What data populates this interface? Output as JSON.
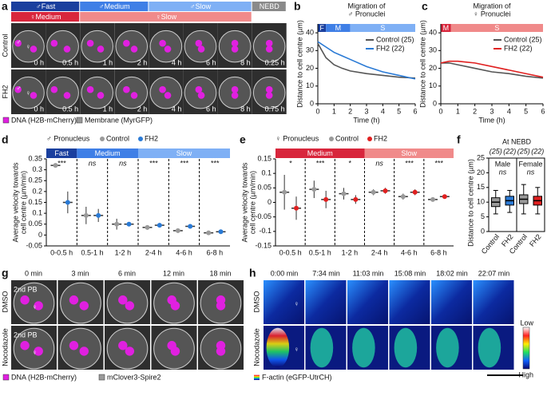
{
  "panel_labels": [
    "a",
    "b",
    "c",
    "d",
    "e",
    "f",
    "g",
    "h"
  ],
  "panel_a": {
    "male_phases": [
      "♂Fast",
      "♂Medium",
      "♂Slow",
      "NEBD"
    ],
    "female_phases": [
      "♀Medium",
      "♀Slow"
    ],
    "rows": [
      "Control",
      "FH2"
    ],
    "times": [
      [
        "0 h",
        "0.5 h",
        "1 h",
        "2 h",
        "4 h",
        "6 h",
        "8 h",
        "0.25 h"
      ],
      [
        "0 h",
        "0.5 h",
        "1 h",
        "2 h",
        "4 h",
        "6 h",
        "8 h",
        "0.75 h"
      ]
    ],
    "markers": [
      "♂",
      "♀"
    ],
    "legend": [
      "DNA (H2B-mCherry)",
      "Membrane (MyrGFP)"
    ]
  },
  "panel_g": {
    "times": [
      "0 min",
      "3 min",
      "6 min",
      "12 min",
      "18 min"
    ],
    "rows": [
      "DMSO",
      "Nocodazole"
    ],
    "polar_body": "2nd PB",
    "female": "♀",
    "legend": [
      "DNA (H2B-mCherry)",
      "mClover3-Spire2"
    ]
  },
  "panel_h": {
    "times": [
      "0:00 min",
      "7:34 min",
      "11:03 min",
      "15:08 min",
      "18:02 min",
      "22:07 min"
    ],
    "rows": [
      "DMSO",
      "Nocodazole"
    ],
    "female": "♀",
    "colorbar": [
      "Low",
      "High"
    ],
    "legend": [
      "F-actin (eGFP-UtrCH)"
    ]
  },
  "chart_data": [
    {
      "type": "line",
      "title": [
        "Migration of",
        "♂ Pronuclei"
      ],
      "xlabel": "Time (h)",
      "ylabel": "Distance to cell centre (µm)",
      "x": [
        0,
        0.5,
        1,
        1.5,
        2,
        3,
        4,
        5,
        6
      ],
      "xlim": [
        0,
        6
      ],
      "xticks": [
        0,
        1,
        2,
        3,
        4,
        5,
        6
      ],
      "ylim": [
        0,
        45
      ],
      "yticks": [
        0,
        10,
        20,
        30,
        40
      ],
      "phases": [
        {
          "label": "F",
          "from": 0,
          "to": 0.5,
          "color": "#1a3f9e"
        },
        {
          "label": "M",
          "from": 0.5,
          "to": 2,
          "color": "#3f7fe6"
        },
        {
          "label": "S",
          "from": 2,
          "to": 6,
          "color": "#7fb0f5"
        }
      ],
      "legend": "upper right",
      "series": [
        {
          "name": "Control (25)",
          "color": "#555555",
          "values": [
            34,
            26,
            22,
            20,
            18.5,
            17,
            16,
            15,
            14.5
          ]
        },
        {
          "name": "FH2 (22)",
          "color": "#2a7ad5",
          "values": [
            35,
            32,
            29,
            27,
            25,
            21,
            18,
            16,
            14
          ]
        }
      ]
    },
    {
      "type": "line",
      "title": [
        "Migration of",
        "♀ Pronuclei"
      ],
      "xlabel": "Time (h)",
      "ylabel": "Distance to cell centre (µm)",
      "x": [
        0,
        0.5,
        1,
        1.5,
        2,
        3,
        4,
        5,
        6
      ],
      "xlim": [
        0,
        6
      ],
      "xticks": [
        0,
        1,
        2,
        3,
        4,
        5,
        6
      ],
      "ylim": [
        0,
        45
      ],
      "yticks": [
        0,
        10,
        20,
        30,
        40
      ],
      "phases": [
        {
          "label": "M",
          "from": 0,
          "to": 0.6,
          "color": "#d8263c"
        },
        {
          "label": "S",
          "from": 0.6,
          "to": 6,
          "color": "#f08a8a"
        }
      ],
      "legend": "upper right",
      "series": [
        {
          "name": "Control (25)",
          "color": "#555555",
          "values": [
            23,
            23,
            22,
            21,
            20,
            18,
            17,
            15.5,
            14.5
          ]
        },
        {
          "name": "FH2 (22)",
          "color": "#e02020",
          "values": [
            23,
            24,
            24,
            23.5,
            23,
            21,
            19,
            17,
            15
          ]
        }
      ]
    },
    {
      "type": "strip",
      "legend_title": "♂ Pronucleus",
      "ylabel": [
        "Average velocity towards",
        "cell centre (µm/min)"
      ],
      "categories": [
        "0-0.5 h",
        "0.5-1 h",
        "1-2 h",
        "2-4 h",
        "4-6 h",
        "6-8 h"
      ],
      "ylim": [
        -0.05,
        0.35
      ],
      "yticks": [
        -0.05,
        0,
        0.05,
        0.1,
        0.15,
        0.2,
        0.25,
        0.3,
        0.35
      ],
      "phases": [
        {
          "label": "Fast",
          "span": 1,
          "color": "#1a3f9e"
        },
        {
          "label": "Medium",
          "span": 2,
          "color": "#3f7fe6"
        },
        {
          "label": "Slow",
          "span": 3,
          "color": "#7fb0f5"
        }
      ],
      "significance": [
        "***",
        "ns",
        "ns",
        "***",
        "***",
        "***"
      ],
      "series": [
        {
          "name": "Control",
          "color": "#9a9a9a",
          "values": [
            0.32,
            0.09,
            0.05,
            0.035,
            0.02,
            0.01
          ],
          "errors": [
            0.01,
            0.04,
            0.025,
            0.01,
            0.01,
            0.005
          ]
        },
        {
          "name": "FH2",
          "color": "#2a7ad5",
          "values": [
            0.15,
            0.09,
            0.05,
            0.045,
            0.04,
            0.015
          ],
          "errors": [
            0.05,
            0.03,
            0.01,
            0.01,
            0.008,
            0.005
          ]
        }
      ]
    },
    {
      "type": "strip",
      "legend_title": "♀ Pronucleus",
      "ylabel": [
        "Average velocity towards",
        "cell centre (µm/min)"
      ],
      "categories": [
        "0-0.5 h",
        "0.5-1 h",
        "1-2 h",
        "2-4 h",
        "4-6 h",
        "6-8 h"
      ],
      "ylim": [
        -0.15,
        0.15
      ],
      "yticks": [
        -0.15,
        -0.1,
        -0.05,
        0,
        0.05,
        0.1,
        0.15
      ],
      "phases": [
        {
          "label": "Medium",
          "span": 3,
          "color": "#d8263c"
        },
        {
          "label": "Slow",
          "span": 3,
          "color": "#f08a8a"
        }
      ],
      "significance": [
        "*",
        "***",
        "*",
        "ns",
        "***",
        "***"
      ],
      "series": [
        {
          "name": "Control",
          "color": "#9a9a9a",
          "values": [
            0.035,
            0.045,
            0.03,
            0.035,
            0.02,
            0.01
          ],
          "errors": [
            0.06,
            0.03,
            0.02,
            0.01,
            0.01,
            0.005
          ]
        },
        {
          "name": "FH2",
          "color": "#e02020",
          "values": [
            -0.02,
            0.01,
            0.01,
            0.04,
            0.035,
            0.02
          ],
          "errors": [
            0.04,
            0.03,
            0.015,
            0.01,
            0.01,
            0.005
          ]
        }
      ]
    },
    {
      "type": "box",
      "title": "At NEBD",
      "ylabel": "Distance to  cell centre (µm)",
      "categories": [
        "Control",
        "FH2",
        "Control",
        "FH2"
      ],
      "counts": [
        "(25)",
        "(22)",
        "(25)",
        "(22)"
      ],
      "groups": [
        {
          "name": "Male",
          "annotation": "ns"
        },
        {
          "name": "Female",
          "annotation": "ns"
        }
      ],
      "ylim": [
        0,
        25
      ],
      "yticks": [
        0,
        5,
        10,
        15,
        20,
        25
      ],
      "boxes": [
        {
          "color": "#9a9a9a",
          "min": 6,
          "q1": 8.5,
          "median": 10,
          "q3": 11.5,
          "max": 14
        },
        {
          "color": "#2a7ad5",
          "min": 6.5,
          "q1": 9,
          "median": 10.5,
          "q3": 12,
          "max": 14
        },
        {
          "color": "#9a9a9a",
          "min": 6,
          "q1": 9.5,
          "median": 11,
          "q3": 12.5,
          "max": 16
        },
        {
          "color": "#e02020",
          "min": 6,
          "q1": 9,
          "median": 10.5,
          "q3": 12,
          "max": 15
        }
      ]
    }
  ]
}
